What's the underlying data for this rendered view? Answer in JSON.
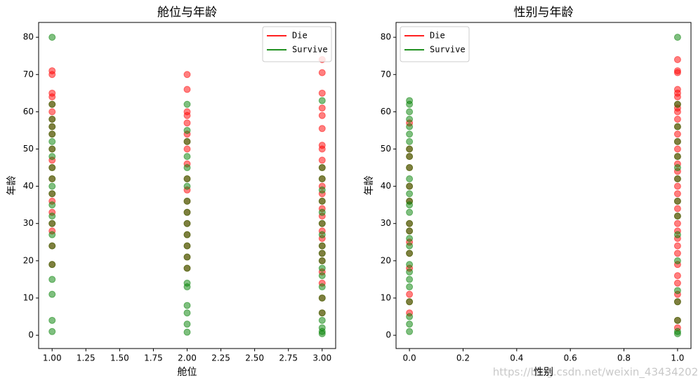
{
  "chart_data": [
    {
      "type": "scatter",
      "title": "舱位与年龄",
      "xlabel": "舱位",
      "ylabel": "年龄",
      "xlim": [
        0.9,
        3.1
      ],
      "ylim": [
        -3.56,
        83.98
      ],
      "xticks": [
        {
          "value": 1,
          "label": "1.00"
        },
        1.25,
        {
          "value": 1.5,
          "label": "1.50"
        },
        1.75,
        {
          "value": 2,
          "label": "2.00"
        },
        2.25,
        {
          "value": 2.5,
          "label": "2.50"
        },
        2.75,
        {
          "value": 3,
          "label": "3.00"
        }
      ],
      "yticks": [
        0,
        10,
        20,
        30,
        40,
        50,
        60,
        70,
        80
      ],
      "legend": "upper right",
      "series": [
        {
          "name": "Die",
          "color": "#ff0000",
          "x": [
            1,
            1,
            1,
            1,
            1,
            1,
            1,
            1,
            1,
            1,
            1,
            1,
            1,
            1,
            1,
            1,
            1,
            1,
            1,
            1,
            2,
            2,
            2,
            2,
            2,
            2,
            2,
            2,
            2,
            2,
            2,
            2,
            2,
            2,
            2,
            2,
            2,
            2,
            3,
            3,
            3,
            3,
            3,
            3,
            3,
            3,
            3,
            3,
            3,
            3,
            3,
            3,
            3,
            3,
            3,
            3,
            3,
            3,
            3,
            3,
            3,
            3,
            3,
            3
          ],
          "y": [
            71,
            70,
            65,
            64,
            62,
            60,
            58,
            56,
            54,
            50,
            47,
            45,
            42,
            38,
            36,
            33,
            30,
            28,
            24,
            19,
            70,
            66,
            60,
            59,
            57,
            54,
            52,
            50,
            46,
            42,
            39,
            36,
            33,
            30,
            27,
            24,
            21,
            18,
            74,
            70.5,
            65,
            61,
            59,
            55.5,
            51,
            50,
            47,
            45,
            42,
            40,
            38,
            36,
            34,
            32,
            30,
            28,
            26,
            24,
            22,
            20,
            17,
            14,
            10,
            6
          ]
        },
        {
          "name": "Survive",
          "color": "#008000",
          "x": [
            1,
            1,
            1,
            1,
            1,
            1,
            1,
            1,
            1,
            1,
            1,
            1,
            1,
            1,
            1,
            1,
            1,
            1,
            1,
            1,
            1,
            1,
            2,
            2,
            2,
            2,
            2,
            2,
            2,
            2,
            2,
            2,
            2,
            2,
            2,
            2,
            2,
            2,
            2,
            2,
            2,
            2,
            3,
            3,
            3,
            3,
            3,
            3,
            3,
            3,
            3,
            3,
            3,
            3,
            3,
            3,
            3,
            3,
            3,
            3,
            3,
            3
          ],
          "y": [
            80,
            62,
            58,
            56,
            54,
            52,
            50,
            48,
            45,
            42,
            40,
            38,
            35,
            32,
            30,
            27,
            24,
            19,
            15,
            11,
            4,
            1,
            62,
            55,
            52,
            48,
            45,
            42,
            40,
            36,
            33,
            30,
            27,
            24,
            21,
            18,
            14,
            13,
            8,
            6,
            3,
            0.83,
            63,
            45,
            42,
            39,
            36,
            33,
            30,
            27,
            24,
            22,
            20,
            18,
            16,
            13,
            10,
            6,
            4,
            2,
            1,
            0.42
          ]
        }
      ]
    },
    {
      "type": "scatter",
      "title": "性别与年龄",
      "xlabel": "性别",
      "ylabel": "年龄",
      "xlim": [
        -0.05,
        1.05
      ],
      "ylim": [
        -3.56,
        83.98
      ],
      "xticks": [
        {
          "value": 0,
          "label": "0.0"
        },
        0.2,
        0.4,
        0.6,
        0.8,
        {
          "value": 1,
          "label": "1.0"
        }
      ],
      "yticks": [
        0,
        10,
        20,
        30,
        40,
        50,
        60,
        70,
        80
      ],
      "legend": "upper left",
      "series": [
        {
          "name": "Die",
          "color": "#ff0000",
          "x": [
            0,
            0,
            0,
            0,
            0,
            0,
            0,
            0,
            0,
            0,
            0,
            0,
            0,
            0,
            1,
            1,
            1,
            1,
            1,
            1,
            1,
            1,
            1,
            1,
            1,
            1,
            1,
            1,
            1,
            1,
            1,
            1,
            1,
            1,
            1,
            1,
            1,
            1,
            1,
            1,
            1,
            1,
            1,
            1,
            1,
            1,
            1,
            1,
            1
          ],
          "y": [
            57,
            50,
            48,
            45,
            40,
            36,
            30,
            28,
            25,
            22,
            18,
            11,
            9,
            6,
            74,
            71,
            70.5,
            66,
            65,
            64,
            62,
            61,
            60,
            58,
            56,
            54,
            52,
            50,
            48,
            46,
            44,
            42,
            40,
            38,
            36,
            34,
            32,
            30,
            28,
            26,
            24,
            22,
            19,
            16,
            14,
            11,
            9,
            4,
            2
          ]
        },
        {
          "name": "Survive",
          "color": "#008000",
          "x": [
            0,
            0,
            0,
            0,
            0,
            0,
            0,
            0,
            0,
            0,
            0,
            0,
            0,
            0,
            0,
            0,
            0,
            0,
            0,
            0,
            0,
            0,
            0,
            0,
            0,
            0,
            0,
            0,
            0,
            1,
            1,
            1,
            1,
            1,
            1,
            1,
            1,
            1,
            1,
            1,
            1,
            1,
            1,
            1,
            1
          ],
          "y": [
            63,
            62,
            60,
            58,
            56,
            54,
            52,
            50,
            48,
            45,
            42,
            40,
            38,
            36,
            35,
            33,
            30,
            28,
            26,
            24,
            22,
            19,
            17,
            15,
            13,
            9,
            5,
            3,
            1,
            80,
            62,
            56,
            52,
            48,
            45,
            42,
            36,
            32,
            27,
            20,
            12,
            9,
            4,
            1,
            0.42
          ]
        }
      ]
    }
  ],
  "watermark": "https://blog.csdn.net/weixin_43434202"
}
